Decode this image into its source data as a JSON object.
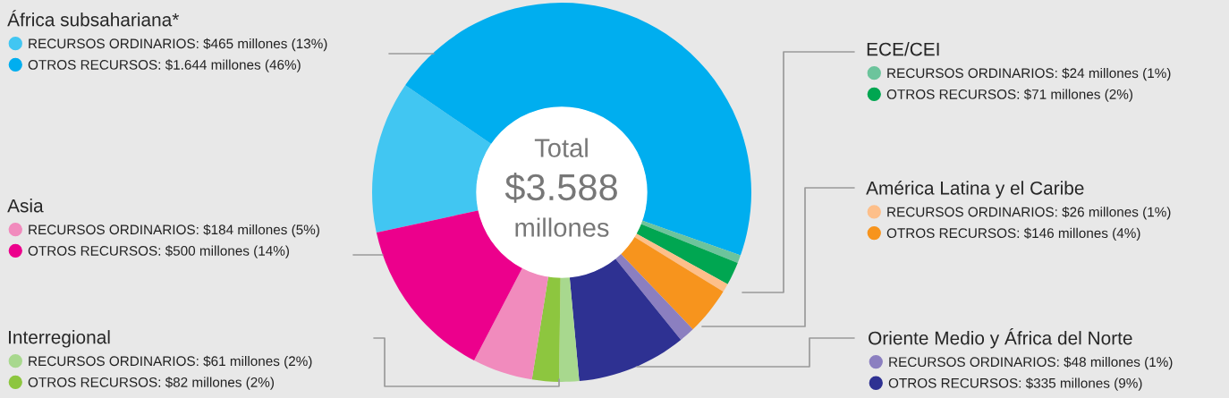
{
  "chart_data": {
    "type": "donut",
    "categories": [
      "RECURSOS ORDINARIOS",
      "OTROS RECURSOS",
      "RECURSOS ORDINARIOS",
      "OTROS RECURSOS",
      "RECURSOS ORDINARIOS",
      "OTROS RECURSOS",
      "RECURSOS ORDINARIOS",
      "OTROS RECURSOS",
      "RECURSOS ORDINARIOS",
      "OTROS RECURSOS",
      "RECURSOS ORDINARIOS",
      "OTROS RECURSOS"
    ],
    "values": [
      465,
      1644,
      24,
      71,
      26,
      146,
      48,
      335,
      61,
      82,
      184,
      500
    ],
    "colors": [
      "#41c6f2",
      "#00aeef",
      "#6cc49c",
      "#00a651",
      "#fdbf8a",
      "#f7941d",
      "#8b7fc0",
      "#2e3192",
      "#a8d88e",
      "#8dc63f",
      "#f18bbd",
      "#ec008c"
    ],
    "value_labels": [
      "$465 millones (13%)",
      "$1.644 millones (46%)",
      "$24 millones (1%)",
      "$71 millones (2%)",
      "$26 millones (1%)",
      "$146 millones (4%)",
      "$48 millones (1%)",
      "$335 millones (9%)",
      "$61 millones (2%)",
      "$82 millones (2%)",
      "$184 millones (5%)",
      "$500 millones (14%)"
    ],
    "legend": "bottom right",
    "annotations": [
      "África subsahariana*",
      "ECE/CEI",
      "América Latina y el Caribe",
      "Oriente Medio y África del Norte",
      "Interregional",
      "Asia",
      "Total",
      "$3.588",
      "millones"
    ]
  }
}
